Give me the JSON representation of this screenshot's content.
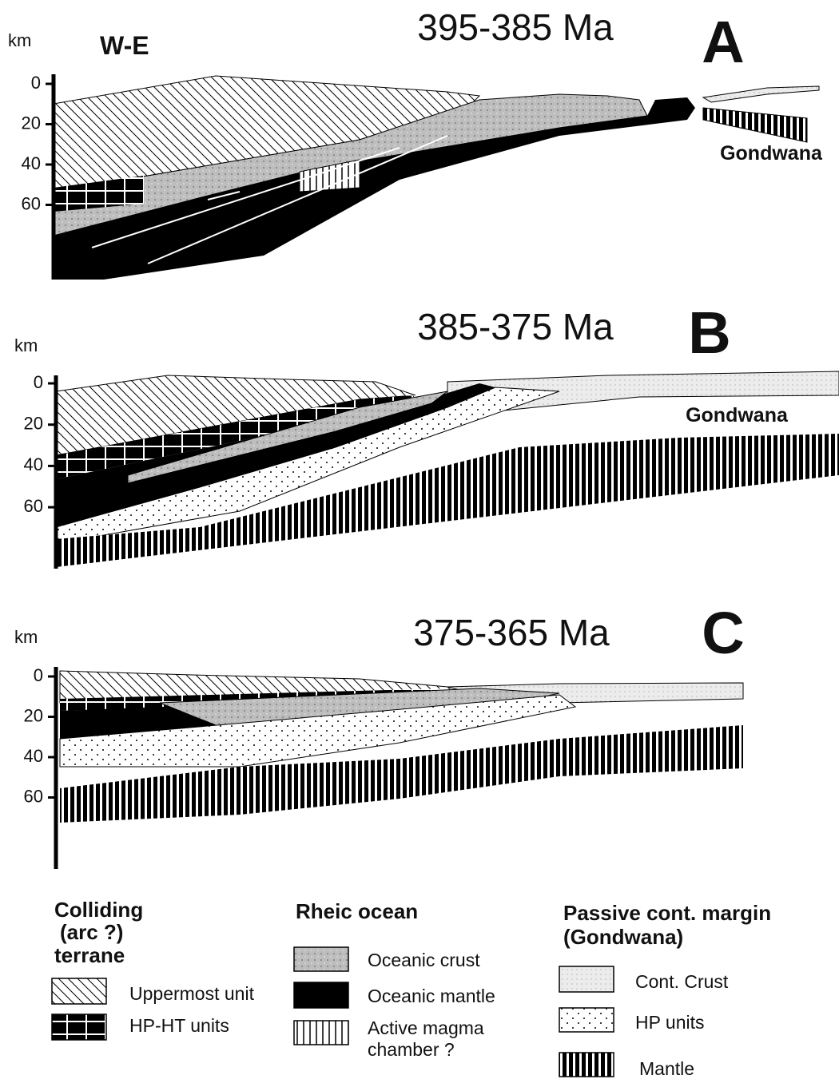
{
  "panels": [
    {
      "unit": "km",
      "section": "W-E",
      "age": "395-385 Ma",
      "label": "A",
      "ticks": [
        "0",
        "20",
        "40",
        "60"
      ],
      "region": "Gondwana"
    },
    {
      "unit": "km",
      "age": "385-375 Ma",
      "label": "B",
      "ticks": [
        "0",
        "20",
        "40",
        "60"
      ],
      "region": "Gondwana"
    },
    {
      "unit": "km",
      "age": "375-365 Ma",
      "label": "C",
      "ticks": [
        "0",
        "20",
        "40",
        "60"
      ]
    }
  ],
  "legend": [
    {
      "title": [
        "Colliding",
        "(arc ?)",
        "terrane"
      ],
      "items": [
        [
          "Uppermost unit"
        ],
        [
          "HP-HT  units"
        ]
      ]
    },
    {
      "title": [
        "Rheic  ocean"
      ],
      "items": [
        [
          "Oceanic crust"
        ],
        [
          "Oceanic mantle"
        ],
        [
          "Active magma",
          "chamber ?"
        ]
      ]
    },
    {
      "title": [
        "Passive cont. margin",
        "(Gondwana)"
      ],
      "items": [
        [
          "Cont. Crust"
        ],
        [
          "HP units"
        ],
        [
          "Mantle"
        ]
      ]
    }
  ]
}
